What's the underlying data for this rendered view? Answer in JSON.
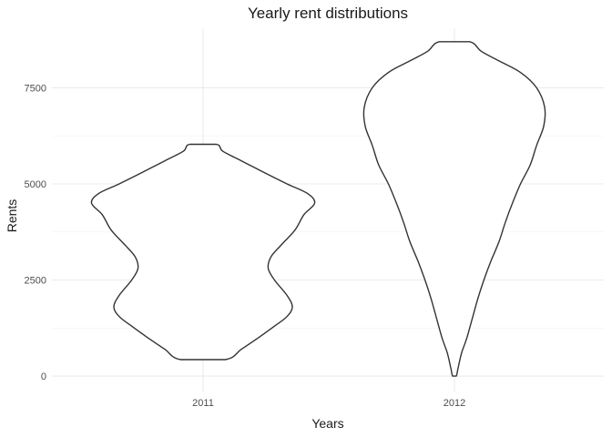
{
  "chart_data": {
    "type": "violin",
    "title": "Yearly rent distributions",
    "xlabel": "Years",
    "ylabel": "Rents",
    "categories": [
      "2011",
      "2012"
    ],
    "y_ticks": [
      0,
      2500,
      5000,
      7500
    ],
    "ylim": [
      -400,
      9050
    ],
    "grid": true,
    "colors": {
      "outline": "#333333",
      "grid": "#ebebeb",
      "fill": "#ffffff"
    },
    "violins": [
      {
        "category": "2011",
        "min": 430,
        "max": 6030,
        "profile": [
          [
            430,
            0.25
          ],
          [
            700,
            0.43
          ],
          [
            1000,
            0.62
          ],
          [
            1300,
            0.8
          ],
          [
            1550,
            0.94
          ],
          [
            1800,
            1.0
          ],
          [
            2100,
            0.94
          ],
          [
            2500,
            0.8
          ],
          [
            2800,
            0.73
          ],
          [
            3100,
            0.76
          ],
          [
            3400,
            0.87
          ],
          [
            3800,
            1.03
          ],
          [
            4200,
            1.13
          ],
          [
            4500,
            1.25
          ],
          [
            4750,
            1.17
          ],
          [
            5000,
            0.94
          ],
          [
            5300,
            0.68
          ],
          [
            5600,
            0.43
          ],
          [
            5850,
            0.22
          ],
          [
            6030,
            0.15
          ]
        ]
      },
      {
        "category": "2012",
        "min": 0,
        "max": 8700,
        "profile": [
          [
            0,
            0.02
          ],
          [
            200,
            0.04
          ],
          [
            600,
            0.08
          ],
          [
            1000,
            0.14
          ],
          [
            1500,
            0.2
          ],
          [
            2000,
            0.26
          ],
          [
            2500,
            0.33
          ],
          [
            3000,
            0.41
          ],
          [
            3500,
            0.5
          ],
          [
            4000,
            0.57
          ],
          [
            4500,
            0.65
          ],
          [
            5000,
            0.74
          ],
          [
            5500,
            0.85
          ],
          [
            6000,
            0.92
          ],
          [
            6500,
            1.0
          ],
          [
            7000,
            1.01
          ],
          [
            7500,
            0.92
          ],
          [
            7900,
            0.74
          ],
          [
            8200,
            0.5
          ],
          [
            8450,
            0.3
          ],
          [
            8700,
            0.17
          ]
        ]
      }
    ]
  }
}
